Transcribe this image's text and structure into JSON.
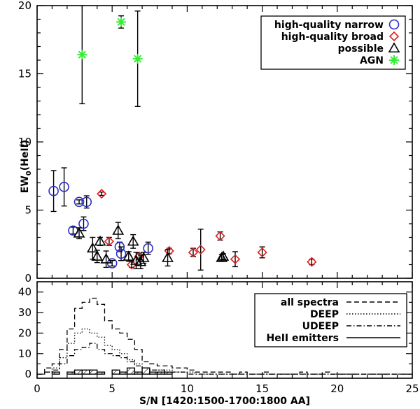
{
  "chart_data": [
    {
      "type": "scatter",
      "xlabel": "S/N [1420:1500-1700:1800 AA]",
      "ylabel": "EW",
      "ylabel_sub": "0",
      "ylabel_suffix": "(HeII)",
      "xlim": [
        0,
        25
      ],
      "ylim": [
        0,
        20
      ],
      "x_ticks": [
        0,
        5,
        10,
        15,
        20,
        25
      ],
      "y_ticks": [
        0,
        5,
        10,
        15,
        20
      ],
      "legend_position": "top-right",
      "series": [
        {
          "name": "high-quality narrow",
          "marker": "circle",
          "color": "#2b2bc8",
          "points": [
            {
              "x": 1.1,
              "y": 6.4,
              "err": 1.5
            },
            {
              "x": 1.8,
              "y": 6.7,
              "err": 1.4
            },
            {
              "x": 2.4,
              "y": 3.5,
              "err": 0.25
            },
            {
              "x": 2.8,
              "y": 5.6,
              "err": 0.15
            },
            {
              "x": 3.1,
              "y": 4.0,
              "err": 0.5
            },
            {
              "x": 3.3,
              "y": 5.6,
              "err": 0.45
            },
            {
              "x": 5.0,
              "y": 1.1,
              "err": 0.2
            },
            {
              "x": 5.5,
              "y": 2.3,
              "err": 0.35
            },
            {
              "x": 5.6,
              "y": 1.8,
              "err": 0.5
            },
            {
              "x": 7.4,
              "y": 2.2,
              "err": 0.45
            }
          ]
        },
        {
          "name": "high-quality broad",
          "marker": "diamond",
          "color": "#e02020",
          "points": [
            {
              "x": 4.3,
              "y": 6.2,
              "err": 0.12
            },
            {
              "x": 4.8,
              "y": 2.7,
              "err": 0.3
            },
            {
              "x": 6.3,
              "y": 1.0,
              "err": 0.2
            },
            {
              "x": 6.8,
              "y": 1.6,
              "err": 0.25
            },
            {
              "x": 8.8,
              "y": 2.0,
              "err": 0.2
            },
            {
              "x": 10.4,
              "y": 1.9,
              "err": 0.3
            },
            {
              "x": 10.9,
              "y": 2.1,
              "err": 1.5
            },
            {
              "x": 12.2,
              "y": 3.1,
              "err": 0.3
            },
            {
              "x": 13.2,
              "y": 1.4,
              "err": 0.55
            },
            {
              "x": 15.0,
              "y": 1.9,
              "err": 0.4
            },
            {
              "x": 18.3,
              "y": 1.2,
              "err": 0.2
            }
          ]
        },
        {
          "name": "possible",
          "marker": "triangle",
          "color": "#000000",
          "points": [
            {
              "x": 2.8,
              "y": 3.3,
              "err": 0.4
            },
            {
              "x": 3.7,
              "y": 2.2,
              "err": 0.8
            },
            {
              "x": 4.0,
              "y": 1.6,
              "err": 0.45
            },
            {
              "x": 4.2,
              "y": 2.7,
              "err": 0.3
            },
            {
              "x": 4.6,
              "y": 1.4,
              "err": 0.6
            },
            {
              "x": 5.4,
              "y": 3.5,
              "err": 0.6
            },
            {
              "x": 6.1,
              "y": 1.6,
              "err": 0.35
            },
            {
              "x": 6.4,
              "y": 2.7,
              "err": 0.5
            },
            {
              "x": 6.6,
              "y": 1.3,
              "err": 0.6
            },
            {
              "x": 6.9,
              "y": 1.2,
              "err": 0.5
            },
            {
              "x": 7.1,
              "y": 1.5,
              "err": 0.4
            },
            {
              "x": 8.7,
              "y": 1.5,
              "err": 0.6
            },
            {
              "x": 12.3,
              "y": 1.5,
              "err": 0.25
            },
            {
              "x": 12.4,
              "y": 1.6,
              "err": 0.2
            }
          ]
        },
        {
          "name": "AGN",
          "marker": "asterisk",
          "color": "#33ee33",
          "points": [
            {
              "x": 3.0,
              "y": 16.4,
              "err": 3.6
            },
            {
              "x": 5.6,
              "y": 18.8,
              "err": 0.45
            },
            {
              "x": 6.7,
              "y": 16.1,
              "err": 3.5
            }
          ]
        }
      ]
    },
    {
      "type": "histogram",
      "xlabel": "S/N [1420:1500-1700:1800 AA]",
      "xlim": [
        0,
        25
      ],
      "ylim": [
        -2,
        45
      ],
      "bin_width": 0.5,
      "x_ticks": [
        0,
        5,
        10,
        15,
        20,
        25
      ],
      "y_ticks": [
        0,
        10,
        20,
        30,
        40
      ],
      "legend_position": "top-right",
      "series": [
        {
          "name": "all spectra",
          "style": "dashed",
          "counts": [
            0,
            3,
            5,
            12,
            22,
            32,
            35,
            37,
            34,
            26,
            22,
            20,
            17,
            12,
            6,
            5,
            4,
            4,
            3,
            3,
            2,
            1,
            1,
            1,
            1,
            1,
            0,
            1,
            0,
            0,
            1,
            0,
            0,
            0,
            0,
            1,
            0,
            0,
            1,
            0,
            0,
            0,
            0,
            0,
            0,
            0,
            0,
            0,
            0,
            0
          ]
        },
        {
          "name": "DEEP",
          "style": "dotted",
          "counts": [
            0,
            1,
            3,
            8,
            15,
            20,
            22,
            20,
            18,
            14,
            12,
            10,
            7,
            5,
            3,
            2,
            2,
            2,
            1,
            1,
            1,
            0,
            0,
            0,
            0,
            0,
            0,
            0,
            0,
            0,
            0,
            0,
            0,
            0,
            0,
            0,
            0,
            0,
            0,
            0,
            0,
            0,
            0,
            0,
            0,
            0,
            0,
            0,
            0,
            0
          ]
        },
        {
          "name": "UDEEP",
          "style": "dashdot",
          "counts": [
            0,
            1,
            2,
            5,
            9,
            12,
            13,
            15,
            12,
            10,
            9,
            8,
            6,
            4,
            3,
            2,
            2,
            1,
            1,
            1,
            0,
            0,
            0,
            0,
            0,
            0,
            0,
            0,
            0,
            0,
            0,
            0,
            0,
            0,
            0,
            0,
            0,
            0,
            0,
            0,
            0,
            0,
            0,
            0,
            0,
            0,
            0,
            0,
            0,
            0
          ]
        },
        {
          "name": "HeII emitters",
          "style": "solid-hatched",
          "counts": [
            0,
            0,
            1,
            0,
            1,
            2,
            2,
            2,
            1,
            0,
            2,
            1,
            3,
            1,
            3,
            1,
            1,
            1,
            0,
            0,
            0,
            0,
            0,
            0,
            0,
            0,
            0,
            0,
            0,
            0,
            0,
            0,
            0,
            0,
            0,
            0,
            0,
            0,
            0,
            0,
            0,
            0,
            0,
            0,
            0,
            0,
            0,
            0,
            0,
            0
          ]
        }
      ]
    }
  ]
}
